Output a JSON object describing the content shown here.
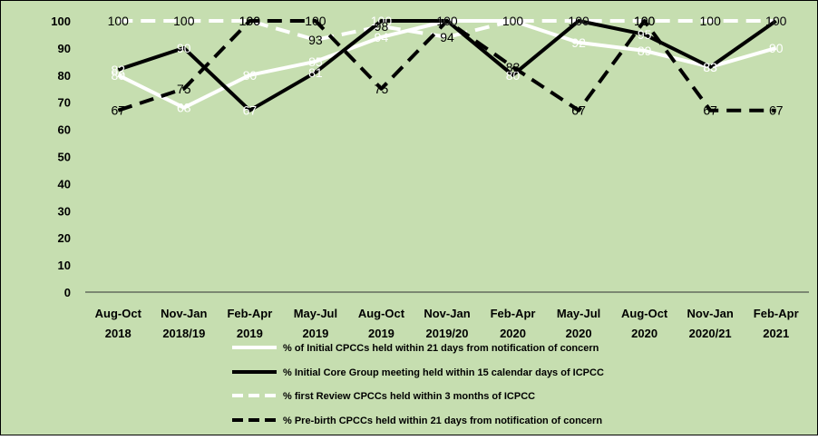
{
  "colors": {
    "background": "#c6deb0",
    "border": "#000000",
    "series_colors": [
      "#ffffff",
      "#000000",
      "#ffffff",
      "#000000"
    ]
  },
  "chart_data": {
    "type": "line",
    "title": "",
    "xlabel": "",
    "ylabel": "",
    "ylim": [
      0,
      100
    ],
    "yticks": [
      0,
      10,
      20,
      30,
      40,
      50,
      60,
      70,
      80,
      90,
      100
    ],
    "grid": false,
    "legend_position": "bottom",
    "categories": [
      [
        "Aug-Oct",
        "2018"
      ],
      [
        "Nov-Jan",
        "2018/19"
      ],
      [
        "Feb-Apr",
        "2019"
      ],
      [
        "May-Jul",
        "2019"
      ],
      [
        "Aug-Oct",
        "2019"
      ],
      [
        "Nov-Jan",
        "2019/20"
      ],
      [
        "Feb-Apr",
        "2020"
      ],
      [
        "May-Jul",
        "2020"
      ],
      [
        "Aug-Oct",
        "2020"
      ],
      [
        "Nov-Jan",
        "2020/21"
      ],
      [
        "Feb-Apr",
        "2021"
      ]
    ],
    "series": [
      {
        "name": "% of Initial CPCCs held within 21 days from notification of concern",
        "values": [
          80,
          68,
          80,
          85,
          94,
          100,
          100,
          92,
          89,
          83,
          90
        ],
        "line_color": "#ffffff",
        "dash": "solid",
        "label_color": "#ffffff"
      },
      {
        "name": "% Initial Core Group meeting held within 15 calendar days of ICPCC",
        "values": [
          82,
          90,
          67,
          81,
          100,
          100,
          80,
          100,
          95,
          83,
          100
        ],
        "line_color": "#000000",
        "dash": "solid",
        "label_color": "#ffffff"
      },
      {
        "name": "% first Review CPCCs held within 3 months of ICPCC",
        "values": [
          100,
          100,
          100,
          93,
          98,
          94,
          100,
          100,
          100,
          100,
          100
        ],
        "line_color": "#ffffff",
        "dash": "dashed",
        "label_color": "#000000"
      },
      {
        "name": "% Pre-birth CPCCs held within 21 days from notification of concern",
        "values": [
          67,
          75,
          100,
          100,
          75,
          100,
          83,
          67,
          100,
          67,
          67
        ],
        "line_color": "#000000",
        "dash": "dashed",
        "label_color": "#000000"
      }
    ]
  }
}
